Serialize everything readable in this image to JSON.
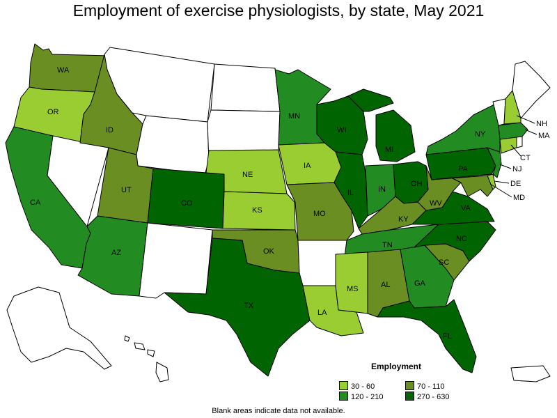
{
  "title": "Employment of exercise physiologists, by state, May 2021",
  "legend": {
    "title": "Employment",
    "items": [
      {
        "range": "30 - 60",
        "color": "#9acd32"
      },
      {
        "range": "70 - 110",
        "color": "#6b8e23"
      },
      {
        "range": "120 - 210",
        "color": "#228b22"
      },
      {
        "range": "270 - 630",
        "color": "#006400"
      }
    ]
  },
  "footnote": "Blank areas indicate data not available.",
  "colors": {
    "30-60": "#9acd32",
    "70-110": "#6b8e23",
    "120-210": "#228b22",
    "270-630": "#006400",
    "no-data": "#ffffff",
    "border": "#000000"
  },
  "states": [
    {
      "abbr": "WA",
      "range": "70 - 110"
    },
    {
      "abbr": "OR",
      "range": "30 - 60"
    },
    {
      "abbr": "CA",
      "range": "120 - 210"
    },
    {
      "abbr": "ID",
      "range": "70 - 110"
    },
    {
      "abbr": "UT",
      "range": "70 - 110"
    },
    {
      "abbr": "AZ",
      "range": "120 - 210"
    },
    {
      "abbr": "CO",
      "range": "270 - 630"
    },
    {
      "abbr": "NE",
      "range": "30 - 60"
    },
    {
      "abbr": "KS",
      "range": "30 - 60"
    },
    {
      "abbr": "OK",
      "range": "70 - 110"
    },
    {
      "abbr": "TX",
      "range": "270 - 630"
    },
    {
      "abbr": "MN",
      "range": "120 - 210"
    },
    {
      "abbr": "IA",
      "range": "30 - 60"
    },
    {
      "abbr": "MO",
      "range": "70 - 110"
    },
    {
      "abbr": "LA",
      "range": "30 - 60"
    },
    {
      "abbr": "WI",
      "range": "270 - 630"
    },
    {
      "abbr": "IL",
      "range": "270 - 630"
    },
    {
      "abbr": "MS",
      "range": "30 - 60"
    },
    {
      "abbr": "MI",
      "range": "270 - 630"
    },
    {
      "abbr": "IN",
      "range": "120 - 210"
    },
    {
      "abbr": "KY",
      "range": "70 - 110"
    },
    {
      "abbr": "TN",
      "range": "120 - 210"
    },
    {
      "abbr": "AL",
      "range": "70 - 110"
    },
    {
      "abbr": "OH",
      "range": "270 - 630"
    },
    {
      "abbr": "WV",
      "range": "70 - 110"
    },
    {
      "abbr": "GA",
      "range": "120 - 210"
    },
    {
      "abbr": "FL",
      "range": "270 - 630"
    },
    {
      "abbr": "SC",
      "range": "70 - 110"
    },
    {
      "abbr": "NC",
      "range": "270 - 630"
    },
    {
      "abbr": "VA",
      "range": "270 - 630"
    },
    {
      "abbr": "PA",
      "range": "270 - 630"
    },
    {
      "abbr": "NY",
      "range": "120 - 210"
    },
    {
      "abbr": "NJ",
      "range": "120 - 210"
    },
    {
      "abbr": "DE",
      "range": "30 - 60"
    },
    {
      "abbr": "MD",
      "range": "70 - 110"
    },
    {
      "abbr": "CT",
      "range": "30 - 60"
    },
    {
      "abbr": "MA",
      "range": "120 - 210"
    },
    {
      "abbr": "NH",
      "range": "30 - 60"
    },
    {
      "abbr": "MT",
      "range": ""
    },
    {
      "abbr": "WY",
      "range": ""
    },
    {
      "abbr": "NV",
      "range": ""
    },
    {
      "abbr": "NM",
      "range": ""
    },
    {
      "abbr": "ND",
      "range": ""
    },
    {
      "abbr": "SD",
      "range": ""
    },
    {
      "abbr": "AR",
      "range": ""
    },
    {
      "abbr": "VT",
      "range": ""
    },
    {
      "abbr": "ME",
      "range": ""
    },
    {
      "abbr": "RI",
      "range": ""
    },
    {
      "abbr": "AK",
      "range": ""
    },
    {
      "abbr": "HI",
      "range": ""
    },
    {
      "abbr": "PR",
      "range": ""
    }
  ],
  "labels": {
    "WA": "WA",
    "OR": "OR",
    "CA": "CA",
    "ID": "ID",
    "UT": "UT",
    "AZ": "AZ",
    "CO": "CO",
    "NE": "NE",
    "KS": "KS",
    "OK": "OK",
    "TX": "TX",
    "MN": "MN",
    "IA": "IA",
    "MO": "MO",
    "LA": "LA",
    "WI": "WI",
    "IL": "IL",
    "MS": "MS",
    "MI": "MI",
    "IN": "IN",
    "KY": "KY",
    "TN": "TN",
    "AL": "AL",
    "OH": "OH",
    "WV": "WV",
    "GA": "GA",
    "FL": "FL",
    "SC": "SC",
    "NC": "NC",
    "VA": "VA",
    "PA": "PA",
    "NY": "NY",
    "NJ": "NJ",
    "DE": "DE",
    "MD": "MD",
    "CT": "CT",
    "MA": "MA",
    "NH": "NH"
  }
}
